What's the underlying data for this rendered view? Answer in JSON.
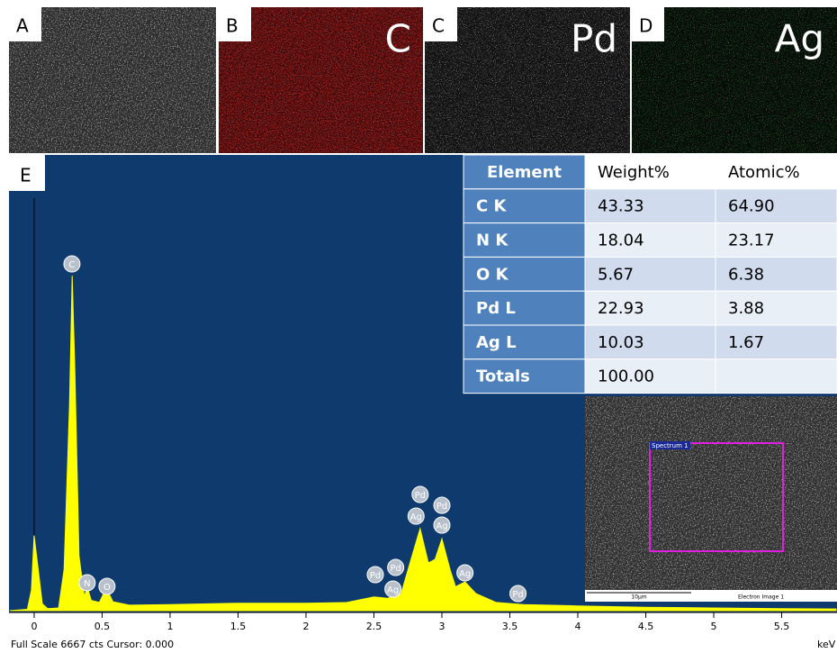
{
  "panels": [
    {
      "label": "A"
    },
    {
      "label": "B",
      "element": "C"
    },
    {
      "label": "C",
      "element": "Pd"
    },
    {
      "label": "D",
      "element": "Ag"
    }
  ],
  "chart_data": {
    "type": "area",
    "label": "E",
    "color": "#ffff00",
    "x": [
      -0.18,
      -0.05,
      -0.02,
      0,
      0.03,
      0.06,
      0.1,
      0.18,
      0.22,
      0.26,
      0.28,
      0.3,
      0.33,
      0.37,
      0.39,
      0.42,
      0.48,
      0.53,
      0.58,
      0.7,
      1,
      1.5,
      2,
      2.3,
      2.5,
      2.6,
      2.7,
      2.78,
      2.84,
      2.9,
      2.95,
      3,
      3.06,
      3.1,
      3.17,
      3.25,
      3.4,
      3.6,
      4,
      4.5,
      5,
      5.5,
      5.9
    ],
    "values": [
      0,
      20,
      300,
      1100,
      600,
      100,
      30,
      40,
      600,
      3000,
      4900,
      3500,
      800,
      200,
      350,
      150,
      120,
      330,
      130,
      80,
      90,
      110,
      110,
      120,
      200,
      180,
      250,
      800,
      1200,
      700,
      750,
      1050,
      600,
      350,
      420,
      250,
      120,
      90,
      70,
      50,
      40,
      30,
      25
    ],
    "xlim": [
      -0.185,
      5.907
    ],
    "ylim": [
      0,
      6667
    ],
    "xticks": [
      0,
      0.5,
      1,
      1.5,
      2,
      2.5,
      3,
      3.5,
      4,
      4.5,
      5,
      5.5
    ],
    "annotations": [
      {
        "text": "C",
        "x": 0.278,
        "y": 5072
      },
      {
        "text": "N",
        "x": 0.39,
        "y": 408
      },
      {
        "text": "O",
        "x": 0.536,
        "y": 356
      },
      {
        "text": "Pd",
        "x": 2.51,
        "y": 527
      },
      {
        "text": "Pd",
        "x": 2.66,
        "y": 632
      },
      {
        "text": "Ag",
        "x": 2.64,
        "y": 316
      },
      {
        "text": "Pd",
        "x": 2.84,
        "y": 1700
      },
      {
        "text": "Ag",
        "x": 2.81,
        "y": 1383
      },
      {
        "text": "Pd",
        "x": 3.0,
        "y": 1541
      },
      {
        "text": "Ag",
        "x": 3.0,
        "y": 1252
      },
      {
        "text": "Ag",
        "x": 3.17,
        "y": 553
      },
      {
        "text": "Pd",
        "x": 3.56,
        "y": 250
      }
    ],
    "footer": "Full Scale 6667 cts Cursor: 0.000",
    "x_unit": "keV"
  },
  "table": {
    "header": [
      "Element",
      "Weight%",
      "Atomic%"
    ],
    "rows": [
      [
        "C K",
        "43.33",
        "64.90"
      ],
      [
        "N K",
        "18.04",
        "23.17"
      ],
      [
        "O K",
        "5.67",
        "6.38"
      ],
      [
        "Pd L",
        "22.93",
        "3.88"
      ],
      [
        "Ag L",
        "10.03",
        "1.67"
      ],
      [
        "Totals",
        "100.00"
      ]
    ]
  },
  "inset": {
    "spectrum_label": "Spectrum 1",
    "scale": "10µm",
    "caption": "Electron Image 1"
  }
}
